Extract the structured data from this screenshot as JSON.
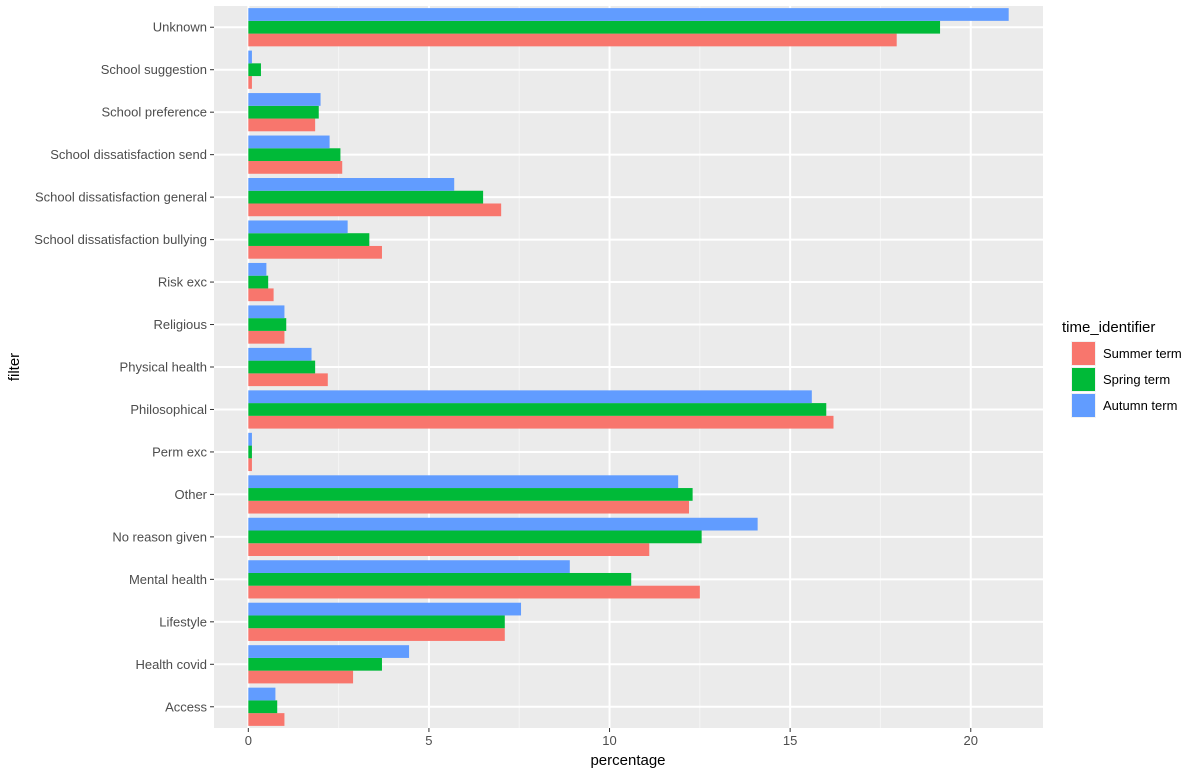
{
  "chart_data": {
    "type": "bar",
    "orientation": "horizontal",
    "categories": [
      "Access",
      "Health covid",
      "Lifestyle",
      "Mental health",
      "No reason given",
      "Other",
      "Perm exc",
      "Philosophical",
      "Physical health",
      "Religious",
      "Risk exc",
      "School dissatisfaction bullying",
      "School dissatisfaction general",
      "School dissatisfaction send",
      "School preference",
      "School suggestion",
      "Unknown"
    ],
    "series": [
      {
        "name": "Summer term",
        "color": "#F8766D",
        "values": [
          1.0,
          2.9,
          7.1,
          12.5,
          11.1,
          12.2,
          0.1,
          16.2,
          2.2,
          1.0,
          0.7,
          3.7,
          7.0,
          2.6,
          1.85,
          0.1,
          17.95
        ]
      },
      {
        "name": "Spring term",
        "color": "#00BA38",
        "values": [
          0.8,
          3.7,
          7.1,
          10.6,
          12.55,
          12.3,
          0.1,
          16.0,
          1.85,
          1.05,
          0.55,
          3.35,
          6.5,
          2.55,
          1.95,
          0.35,
          19.15
        ]
      },
      {
        "name": "Autumn term",
        "color": "#619CFF",
        "values": [
          0.75,
          4.45,
          7.55,
          8.9,
          14.1,
          11.9,
          0.1,
          15.6,
          1.75,
          1.0,
          0.5,
          2.75,
          5.7,
          2.25,
          2.0,
          0.1,
          21.05
        ]
      }
    ],
    "xlabel": "percentage",
    "ylabel": "filter",
    "xlim": [
      -0.95,
      22.0
    ],
    "xticks": [
      0,
      5,
      10,
      15,
      20
    ],
    "xtick_labels": [
      "0",
      "5",
      "10",
      "15",
      "20"
    ],
    "legend": {
      "title": "time_identifier",
      "position": "right"
    },
    "grid": true,
    "panel_background": "#EBEBEB"
  }
}
